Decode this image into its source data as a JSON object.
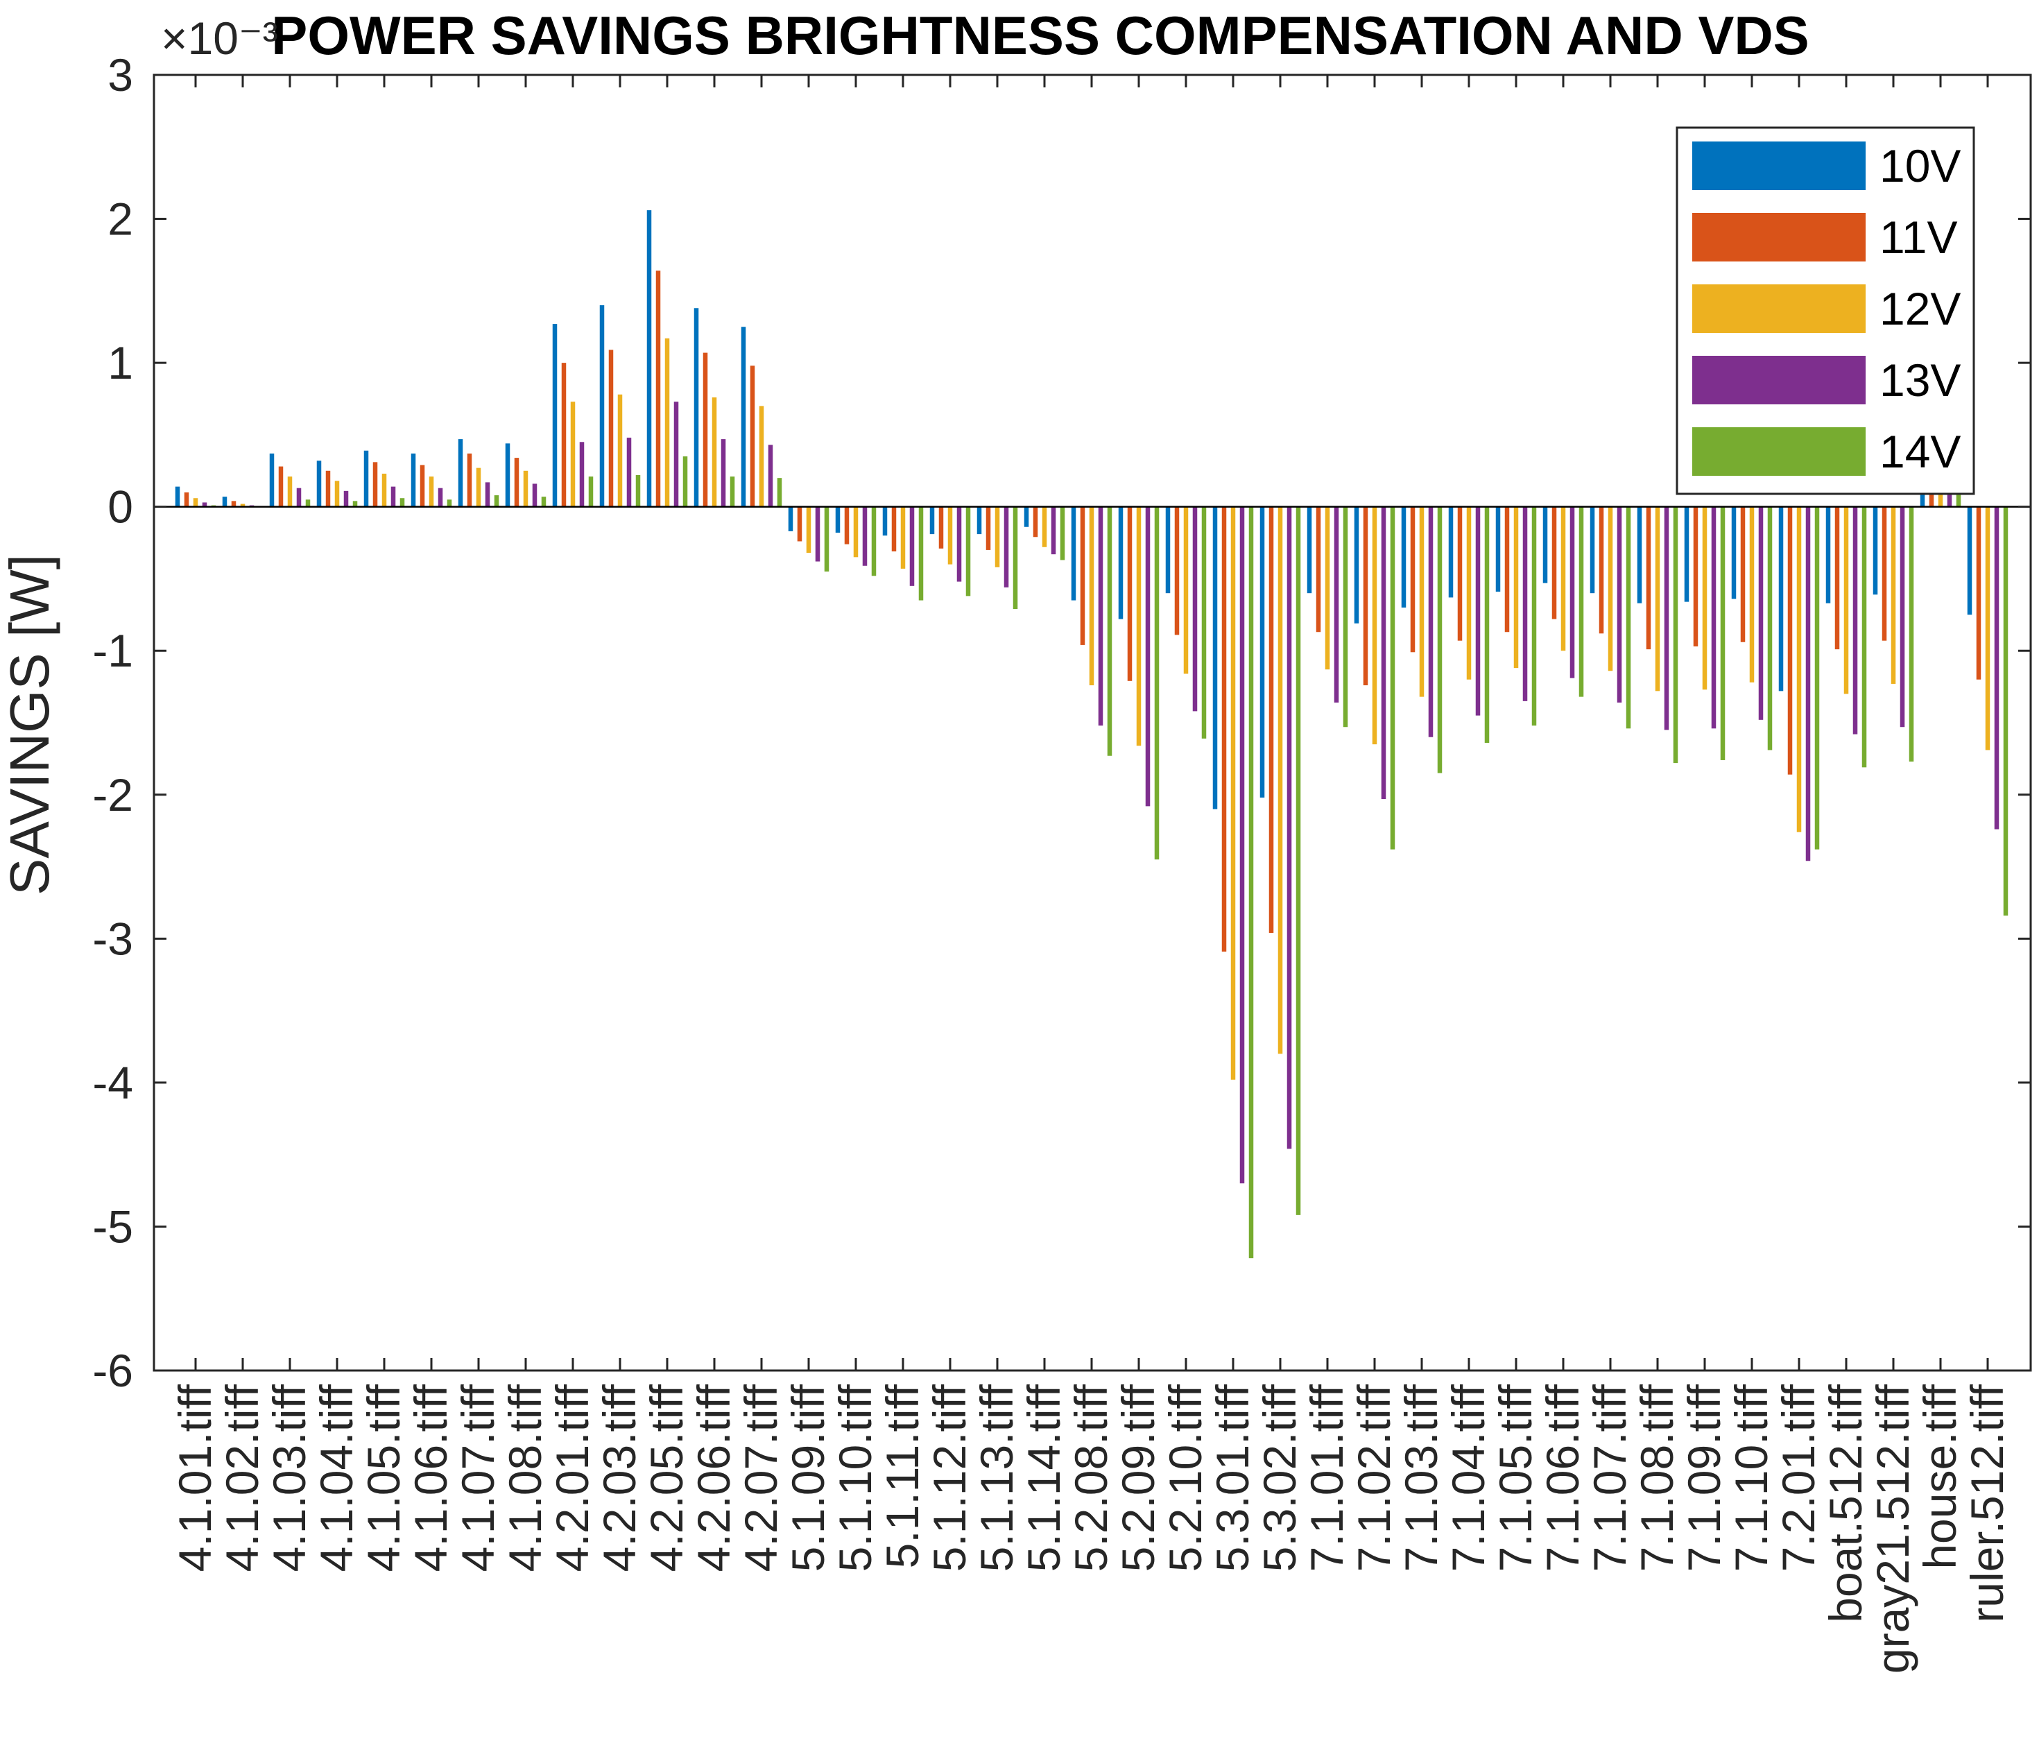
{
  "chart_data": {
    "type": "bar",
    "title": "POWER SAVINGS BRIGHTNESS COMPENSATION AND VDS",
    "xlabel": "",
    "ylabel": "SAVINGS  [W]",
    "yscale_label": "×10⁻³",
    "ylim": [
      -6,
      3
    ],
    "yticks": [
      "3",
      "2",
      "1",
      "0",
      "-1",
      "-2",
      "-3",
      "-4",
      "-5",
      "-6"
    ],
    "ytick_values": [
      3,
      2,
      1,
      0,
      -1,
      -2,
      -3,
      -4,
      -5,
      -6
    ],
    "legend_position": "top-right",
    "grid": false,
    "categories": [
      "4.1.01.tiff",
      "4.1.02.tiff",
      "4.1.03.tiff",
      "4.1.04.tiff",
      "4.1.05.tiff",
      "4.1.06.tiff",
      "4.1.07.tiff",
      "4.1.08.tiff",
      "4.2.01.tiff",
      "4.2.03.tiff",
      "4.2.05.tiff",
      "4.2.06.tiff",
      "4.2.07.tiff",
      "5.1.09.tiff",
      "5.1.10.tiff",
      "5.1.11.tiff",
      "5.1.12.tiff",
      "5.1.13.tiff",
      "5.1.14.tiff",
      "5.2.08.tiff",
      "5.2.09.tiff",
      "5.2.10.tiff",
      "5.3.01.tiff",
      "5.3.02.tiff",
      "7.1.01.tiff",
      "7.1.02.tiff",
      "7.1.03.tiff",
      "7.1.04.tiff",
      "7.1.05.tiff",
      "7.1.06.tiff",
      "7.1.07.tiff",
      "7.1.08.tiff",
      "7.1.09.tiff",
      "7.1.10.tiff",
      "7.2.01.tiff",
      "boat.512.tiff",
      "gray21.512.tiff",
      "house.tiff",
      "ruler.512.tiff"
    ],
    "series": [
      {
        "name": "10V",
        "color": "#0072BD",
        "values": [
          0.14,
          0.07,
          0.37,
          0.32,
          0.39,
          0.37,
          0.47,
          0.44,
          1.27,
          1.4,
          2.06,
          1.38,
          1.25,
          -0.17,
          -0.18,
          -0.2,
          -0.19,
          -0.19,
          -0.14,
          -0.65,
          -0.78,
          -0.6,
          -2.1,
          -2.02,
          -0.6,
          -0.81,
          -0.7,
          -0.63,
          -0.59,
          -0.53,
          -0.6,
          -0.67,
          -0.66,
          -0.64,
          -1.28,
          -0.67,
          -0.61,
          0.1,
          -0.75
        ]
      },
      {
        "name": "11V",
        "color": "#D95319",
        "values": [
          0.1,
          0.04,
          0.28,
          0.25,
          0.31,
          0.29,
          0.37,
          0.34,
          1.0,
          1.09,
          1.64,
          1.07,
          0.98,
          -0.24,
          -0.26,
          -0.31,
          -0.29,
          -0.3,
          -0.21,
          -0.96,
          -1.21,
          -0.89,
          -3.09,
          -2.96,
          -0.87,
          -1.24,
          -1.01,
          -0.93,
          -0.87,
          -0.78,
          -0.88,
          -0.99,
          -0.97,
          -0.94,
          -1.86,
          -0.99,
          -0.93,
          0.1,
          -1.2
        ]
      },
      {
        "name": "12V",
        "color": "#EDB120",
        "values": [
          0.06,
          0.02,
          0.21,
          0.18,
          0.23,
          0.21,
          0.27,
          0.25,
          0.73,
          0.78,
          1.17,
          0.76,
          0.7,
          -0.32,
          -0.35,
          -0.43,
          -0.4,
          -0.42,
          -0.28,
          -1.24,
          -1.66,
          -1.16,
          -3.98,
          -3.8,
          -1.13,
          -1.65,
          -1.32,
          -1.2,
          -1.12,
          -1.0,
          -1.14,
          -1.28,
          -1.27,
          -1.22,
          -2.26,
          -1.3,
          -1.23,
          0.1,
          -1.69
        ]
      },
      {
        "name": "13V",
        "color": "#7E2F8E",
        "values": [
          0.03,
          0.01,
          0.13,
          0.11,
          0.14,
          0.13,
          0.17,
          0.16,
          0.45,
          0.48,
          0.73,
          0.47,
          0.43,
          -0.38,
          -0.41,
          -0.55,
          -0.52,
          -0.56,
          -0.33,
          -1.52,
          -2.08,
          -1.42,
          -4.7,
          -4.46,
          -1.36,
          -2.03,
          -1.6,
          -1.45,
          -1.35,
          -1.19,
          -1.36,
          -1.55,
          -1.54,
          -1.48,
          -2.46,
          -1.58,
          -1.53,
          0.1,
          -2.24
        ]
      },
      {
        "name": "14V",
        "color": "#77AC30",
        "values": [
          0.01,
          0.005,
          0.05,
          0.04,
          0.06,
          0.05,
          0.08,
          0.07,
          0.21,
          0.22,
          0.35,
          0.21,
          0.2,
          -0.45,
          -0.48,
          -0.65,
          -0.62,
          -0.71,
          -0.37,
          -1.73,
          -2.45,
          -1.61,
          -5.22,
          -4.92,
          -1.53,
          -2.38,
          -1.85,
          -1.64,
          -1.52,
          -1.32,
          -1.54,
          -1.78,
          -1.76,
          -1.69,
          -2.38,
          -1.81,
          -1.77,
          0.1,
          -2.84
        ]
      }
    ]
  }
}
